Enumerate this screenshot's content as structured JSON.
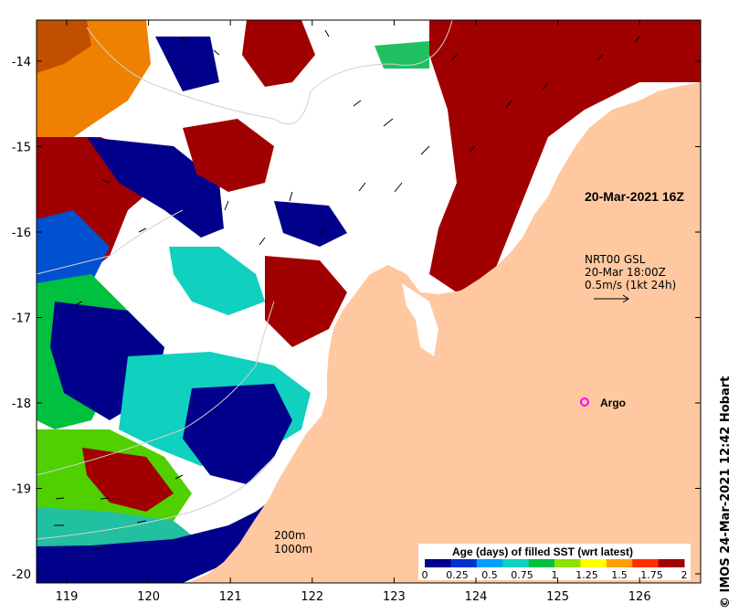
{
  "map": {
    "longitude_ticks": [
      "119",
      "120",
      "121",
      "122",
      "123",
      "124",
      "125",
      "126"
    ],
    "latitude_ticks": [
      "-14",
      "-15",
      "-16",
      "-17",
      "-18",
      "-19",
      "-20"
    ],
    "date_label": "20-Mar-2021 16Z",
    "current_legend": {
      "line1": "NRT00 GSL",
      "line2": "20-Mar 18:00Z",
      "line3": "0.5m/s (1kt 24h)"
    },
    "argo_label": "Argo",
    "isobaths": {
      "shallow": "200m",
      "deep": "1000m"
    },
    "colorbar": {
      "title": "Age (days) of filled SST (wrt latest)",
      "tick_labels": [
        "0",
        "0.25",
        "0.5",
        "0.75",
        "1",
        "1.25",
        "1.5",
        "1.75",
        "2"
      ],
      "colors": [
        "#00008b",
        "#0033cc",
        "#00a0ff",
        "#10d0c0",
        "#00c040",
        "#90e000",
        "#ffff00",
        "#ffa000",
        "#ff3000",
        "#a00000"
      ]
    },
    "credit": "© IMOS 24-Mar-2021 12:42 Hobart",
    "land_color": "#ffc8a0"
  }
}
